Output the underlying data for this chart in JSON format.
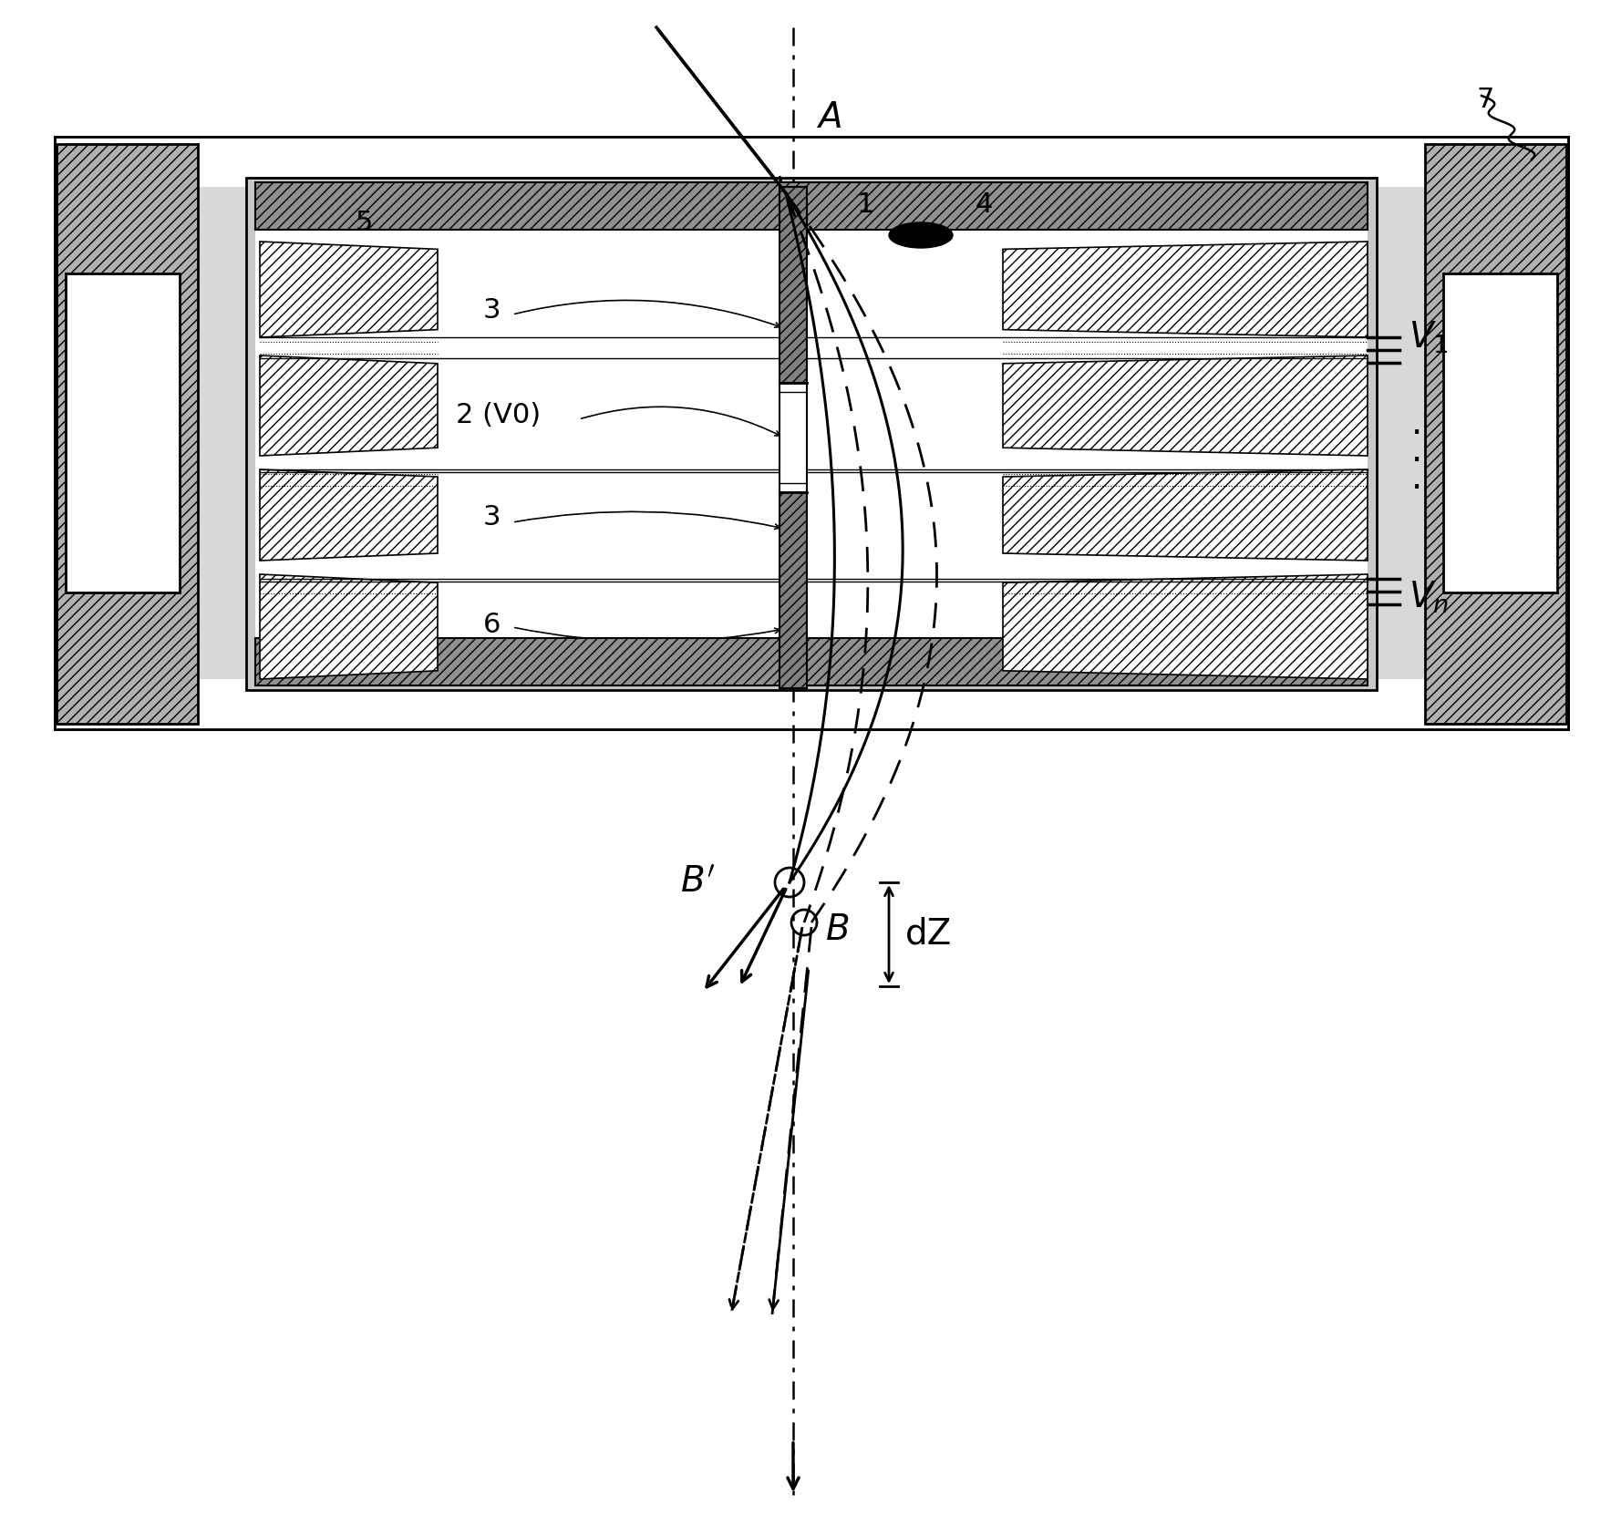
{
  "bg_color": "#ffffff",
  "lc": "#000000",
  "fig_width": 17.78,
  "fig_height": 16.84,
  "dpi": 100
}
